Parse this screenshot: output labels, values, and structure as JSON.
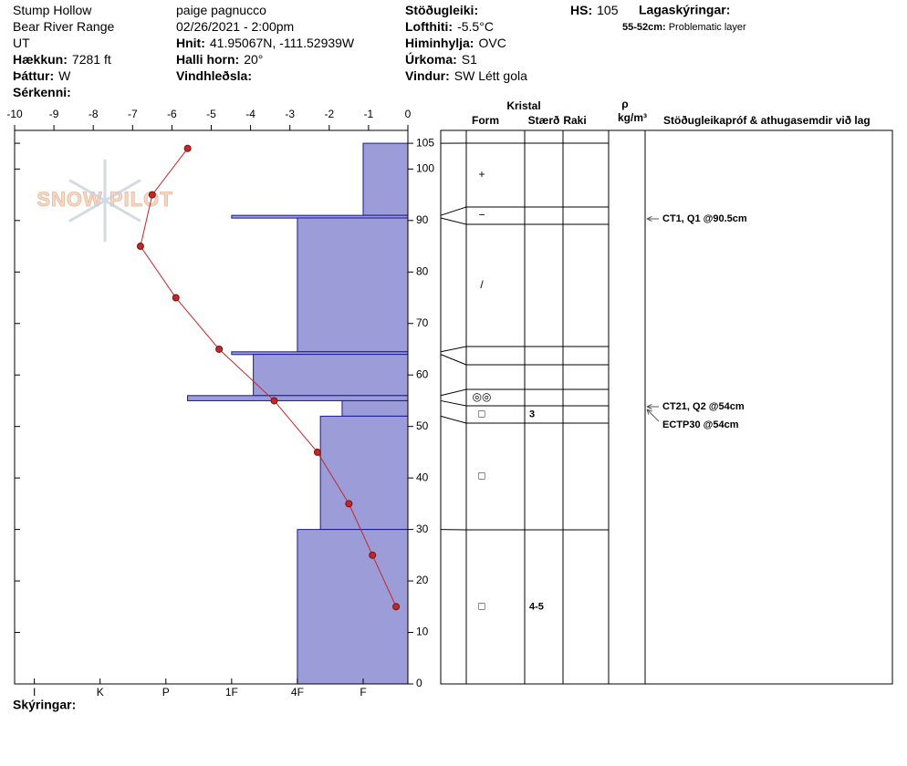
{
  "header": {
    "col1": [
      {
        "value": "Stump Hollow"
      },
      {
        "value": "Bear River Range"
      },
      {
        "value": "UT"
      },
      {
        "label": "Hækkun:",
        "value": "7281 ft"
      },
      {
        "label": "Þáttur:",
        "value": "W"
      },
      {
        "label": "Sérkenni:"
      }
    ],
    "col2": [
      {
        "value": "paige pagnucco"
      },
      {
        "value": "02/26/2021 - 2:00pm"
      },
      {
        "label": "Hnit:",
        "value": "41.95067N, -111.52939W"
      },
      {
        "label": "Halli horn:",
        "value": "20°"
      },
      {
        "label": "Vindhleðsla:"
      }
    ],
    "col3": [
      {
        "label": "Stöðugleiki:"
      },
      {
        "label": "Lofthiti:",
        "value": "-5.5°C"
      },
      {
        "label": "Himinhylja:",
        "value": "OVC"
      },
      {
        "label": "Úrkoma:",
        "value": "S1"
      },
      {
        "label": "Vindur:",
        "value": "SW Létt gola"
      }
    ],
    "hs": {
      "label": "HS:",
      "value": "105"
    }
  },
  "legend": {
    "title": "Lagaskýringar:",
    "items": [
      {
        "range": "55-52cm:",
        "text": "Problematic layer"
      }
    ]
  },
  "watermark": "SNOW PILOT",
  "chart_data": {
    "type": "snow-profile",
    "xlim": [
      -10,
      0
    ],
    "xticks": [
      -10,
      -9,
      -8,
      -7,
      -6,
      -5,
      -4,
      -3,
      -2,
      -1,
      0
    ],
    "ylim": [
      0,
      107.5
    ],
    "yticks": [
      0,
      10,
      20,
      30,
      40,
      50,
      60,
      70,
      80,
      90,
      100,
      105
    ],
    "hardness_lim": [
      6.3,
      0.32
    ],
    "hardness_ticks": [
      {
        "value": 6,
        "label": "I"
      },
      {
        "value": 5,
        "label": "K"
      },
      {
        "value": 4,
        "label": "P"
      },
      {
        "value": 3,
        "label": "1F"
      },
      {
        "value": 2,
        "label": "4F"
      },
      {
        "value": 1,
        "label": "F"
      }
    ],
    "hardness_color": "#9c9cd8",
    "temperature": {
      "color": "#c0282a",
      "heights": [
        104,
        95,
        85,
        75,
        65,
        55,
        45,
        35,
        25,
        15
      ],
      "values": [
        -5.6,
        -6.5,
        -6.8,
        -5.9,
        -4.8,
        -3.4,
        -2.3,
        -1.5,
        -0.9,
        -0.3
      ]
    },
    "layers": [
      {
        "top": 105,
        "bottom": 91,
        "hardness": 1,
        "form": "+"
      },
      {
        "top": 91,
        "bottom": 90.5,
        "hardness": 3,
        "form": "−"
      },
      {
        "top": 90.5,
        "bottom": 64.5,
        "hardness": 2,
        "form": "/"
      },
      {
        "top": 64.5,
        "bottom": 64,
        "hardness": 3
      },
      {
        "top": 64,
        "bottom": 56,
        "hardness": 2.67
      },
      {
        "top": 56,
        "bottom": 55,
        "hardness": 3.67,
        "form": "◎◎"
      },
      {
        "top": 55,
        "bottom": 52,
        "hardness": 1.32,
        "form": "□",
        "size": "3"
      },
      {
        "top": 52,
        "bottom": 30,
        "hardness": 1.65,
        "form": "□"
      },
      {
        "top": 30,
        "bottom": 0,
        "hardness": 2,
        "form": "□",
        "size": "4-5"
      }
    ],
    "columns": {
      "crystal": "Kristal",
      "form": "Form",
      "size": "Stærð",
      "moisture": "Raki",
      "density": "ρ",
      "density_unit": "kg/m³",
      "tests": "Stöðugleikapróf & athugasemdir við lag"
    },
    "tests": [
      "CT1, Q1 @90.5cm",
      "CT21, Q2 @54cm",
      "ECTP30 @54cm"
    ],
    "notes_label": "Skýringar:"
  }
}
